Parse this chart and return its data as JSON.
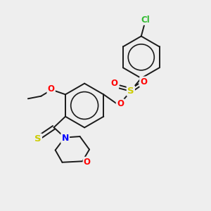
{
  "bg_color": "#eeeeee",
  "bond_color": "#1a1a1a",
  "atom_colors": {
    "O": "#ff0000",
    "S_sulfonate": "#cccc00",
    "S_thio": "#cccc00",
    "N": "#0000ff",
    "Cl": "#33bb33",
    "C": "#1a1a1a"
  },
  "figsize": [
    3.0,
    3.0
  ],
  "dpi": 100
}
